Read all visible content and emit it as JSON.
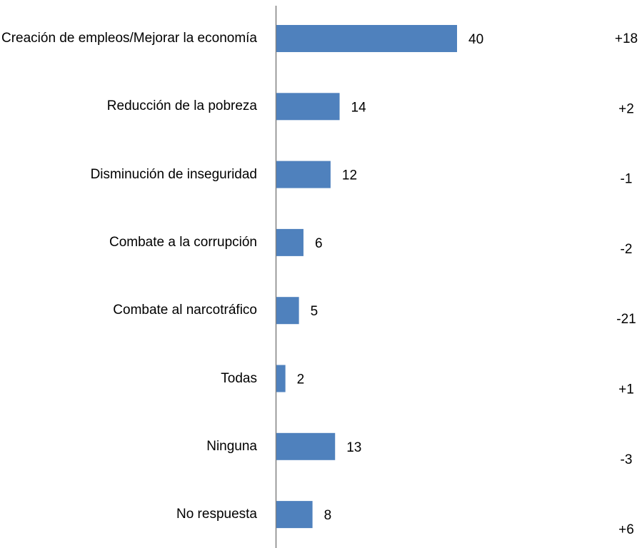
{
  "chart_data": {
    "type": "bar",
    "orientation": "horizontal",
    "categories": [
      "Creación de empleos/Mejorar la economía",
      "Reducción de la pobreza",
      "Disminución de inseguridad",
      "Combate a la corrupción",
      "Combate al narcotráfico",
      "Todas",
      "Ninguna",
      "No respuesta"
    ],
    "values": [
      40,
      14,
      12,
      6,
      5,
      2,
      13,
      8
    ],
    "color": "#4f81bd",
    "xlim": [
      0,
      80
    ],
    "changes": [
      "+18",
      "+2",
      "-1",
      "-2",
      "-21",
      "+1",
      "-3",
      "+6"
    ]
  }
}
